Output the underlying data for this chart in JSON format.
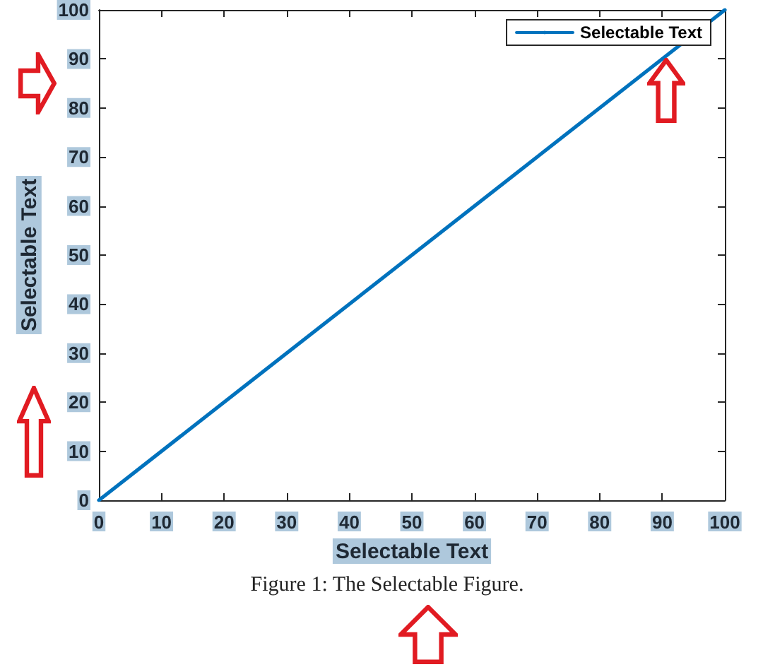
{
  "chart_data": {
    "type": "line",
    "xlabel": "Selectable Text",
    "ylabel": "Selectable Text",
    "annotations": [
      "Figure 1: The Selectable Figure."
    ],
    "x": [
      0,
      100
    ],
    "series": [
      {
        "name": "Selectable Text",
        "color": "#0072bd",
        "values": [
          0,
          100
        ]
      }
    ],
    "xlim": [
      0,
      100
    ],
    "ylim": [
      0,
      100
    ],
    "xticks": [
      0,
      10,
      20,
      30,
      40,
      50,
      60,
      70,
      80,
      90,
      100
    ],
    "yticks": [
      0,
      10,
      20,
      30,
      40,
      50,
      60,
      70,
      80,
      90,
      100
    ],
    "grid": false,
    "legend": "top right",
    "marker": "none",
    "line_style": "solid"
  }
}
